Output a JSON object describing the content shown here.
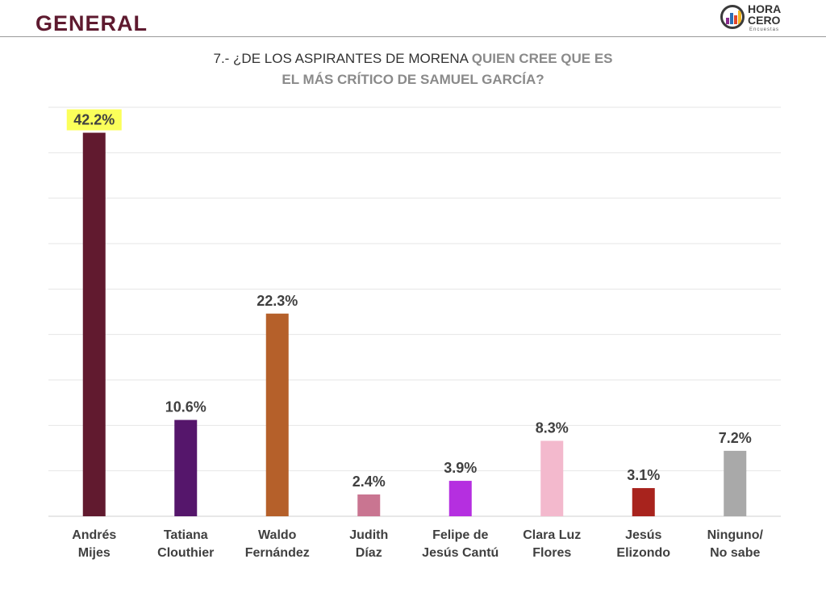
{
  "header": {
    "title": "GENERAL"
  },
  "logo": {
    "line1": "HORA",
    "line2": "CERO",
    "sub": "Encuestas"
  },
  "question": {
    "prefix": "7.- ¿DE LOS ASPIRANTES DE MORENA ",
    "highlight_line1": "QUIEN CREE QUE ES",
    "highlight_line2": "EL MÁS CRÍTICO DE SAMUEL GARCÍA?"
  },
  "chart_data": {
    "type": "bar",
    "categories": [
      [
        "Andrés",
        "Mijes"
      ],
      [
        "Tatiana",
        "Clouthier"
      ],
      [
        "Waldo",
        "Fernández"
      ],
      [
        "Judith",
        "Díaz"
      ],
      [
        "Felipe de",
        "Jesús Cantú"
      ],
      [
        "Clara Luz",
        "Flores"
      ],
      [
        "Jesús",
        "Elizondo"
      ],
      [
        "Ninguno/",
        "No sabe"
      ]
    ],
    "values": [
      42.2,
      10.6,
      22.3,
      2.4,
      3.9,
      8.3,
      3.1,
      7.2
    ],
    "value_labels": [
      "42.2%",
      "10.6%",
      "22.3%",
      "2.4%",
      "3.9%",
      "8.3%",
      "3.1%",
      "7.2%"
    ],
    "colors": [
      "#611a2f",
      "#55166b",
      "#b5602a",
      "#c97591",
      "#b52fe0",
      "#f3b9cd",
      "#a8231d",
      "#a9a9a9"
    ],
    "highlight_index": 0,
    "highlight_color": "#fbff5a",
    "ylim": [
      0,
      45
    ],
    "grid": true,
    "legend": "none"
  }
}
